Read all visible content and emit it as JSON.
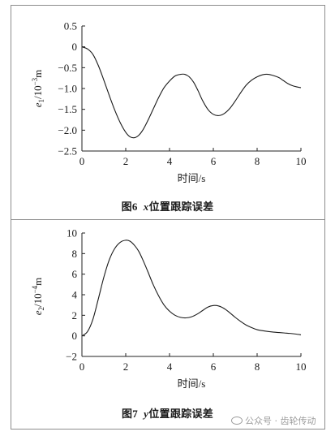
{
  "figures": [
    {
      "caption": {
        "prefix": "图6",
        "var": "x",
        "text": "位置跟踪误差"
      },
      "chart_data": {
        "type": "line",
        "title": "",
        "xlabel": "时间/s",
        "ylabel": "e1/10^-3 m",
        "xlim": [
          0,
          10
        ],
        "ylim": [
          -2.5,
          0.5
        ],
        "xticks": [
          0,
          2,
          4,
          6,
          8,
          10
        ],
        "yticks": [
          0.5,
          0,
          -0.5,
          -1.0,
          -1.5,
          -2.0,
          -2.5
        ],
        "ytick_labels": [
          "0.5",
          "0",
          "−0.5",
          "−1.0",
          "−1.5",
          "−2.0",
          "−2.5"
        ],
        "grid": false,
        "series": [
          {
            "x": [
              0,
              0.25,
              0.5,
              0.75,
              1.0,
              1.25,
              1.5,
              1.75,
              2.0,
              2.2,
              2.4,
              2.6,
              2.8,
              3.0,
              3.25,
              3.5,
              3.75,
              4.0,
              4.25,
              4.5,
              4.7,
              4.9,
              5.1,
              5.3,
              5.5,
              5.75,
              6.0,
              6.25,
              6.5,
              6.75,
              7.0,
              7.25,
              7.5,
              7.75,
              8.0,
              8.25,
              8.5,
              8.75,
              9.0,
              9.2,
              9.4,
              9.6,
              9.8,
              10.0
            ],
            "y": [
              0.0,
              -0.05,
              -0.18,
              -0.45,
              -0.8,
              -1.17,
              -1.52,
              -1.82,
              -2.05,
              -2.16,
              -2.18,
              -2.12,
              -1.98,
              -1.78,
              -1.5,
              -1.22,
              -0.98,
              -0.82,
              -0.7,
              -0.66,
              -0.66,
              -0.72,
              -0.85,
              -1.05,
              -1.28,
              -1.5,
              -1.62,
              -1.65,
              -1.6,
              -1.48,
              -1.3,
              -1.1,
              -0.92,
              -0.8,
              -0.72,
              -0.67,
              -0.66,
              -0.69,
              -0.74,
              -0.81,
              -0.88,
              -0.93,
              -0.96,
              -0.98
            ]
          }
        ]
      }
    },
    {
      "caption": {
        "prefix": "图7",
        "var": "y",
        "text": "位置跟踪误差"
      },
      "chart_data": {
        "type": "line",
        "title": "",
        "xlabel": "时间/s",
        "ylabel": "e2/10^-4 m",
        "xlim": [
          0,
          10
        ],
        "ylim": [
          -2,
          10
        ],
        "xticks": [
          0,
          2,
          4,
          6,
          8,
          10
        ],
        "yticks": [
          10,
          8,
          6,
          4,
          2,
          0,
          -2
        ],
        "ytick_labels": [
          "10",
          "8",
          "6",
          "4",
          "2",
          "0",
          "−2"
        ],
        "grid": false,
        "series": [
          {
            "x": [
              0,
              0.25,
              0.5,
              0.75,
              1.0,
              1.25,
              1.5,
              1.75,
              2.0,
              2.2,
              2.4,
              2.6,
              2.8,
              3.0,
              3.25,
              3.5,
              3.75,
              4.0,
              4.25,
              4.5,
              4.75,
              5.0,
              5.25,
              5.5,
              5.75,
              6.0,
              6.25,
              6.5,
              6.75,
              7.0,
              7.25,
              7.5,
              7.75,
              8.0,
              8.25,
              8.5,
              8.75,
              9.0,
              9.25,
              9.5,
              9.75,
              10.0
            ],
            "y": [
              0.0,
              0.4,
              1.6,
              3.6,
              5.7,
              7.4,
              8.5,
              9.1,
              9.3,
              9.2,
              8.8,
              8.2,
              7.3,
              6.3,
              5.0,
              3.9,
              3.0,
              2.4,
              2.0,
              1.8,
              1.75,
              1.85,
              2.1,
              2.45,
              2.8,
              2.95,
              2.9,
              2.65,
              2.25,
              1.8,
              1.4,
              1.05,
              0.8,
              0.6,
              0.5,
              0.42,
              0.36,
              0.32,
              0.28,
              0.24,
              0.18,
              0.1
            ]
          }
        ]
      }
    }
  ],
  "watermark": {
    "text": "公众号 · 齿轮传动"
  }
}
